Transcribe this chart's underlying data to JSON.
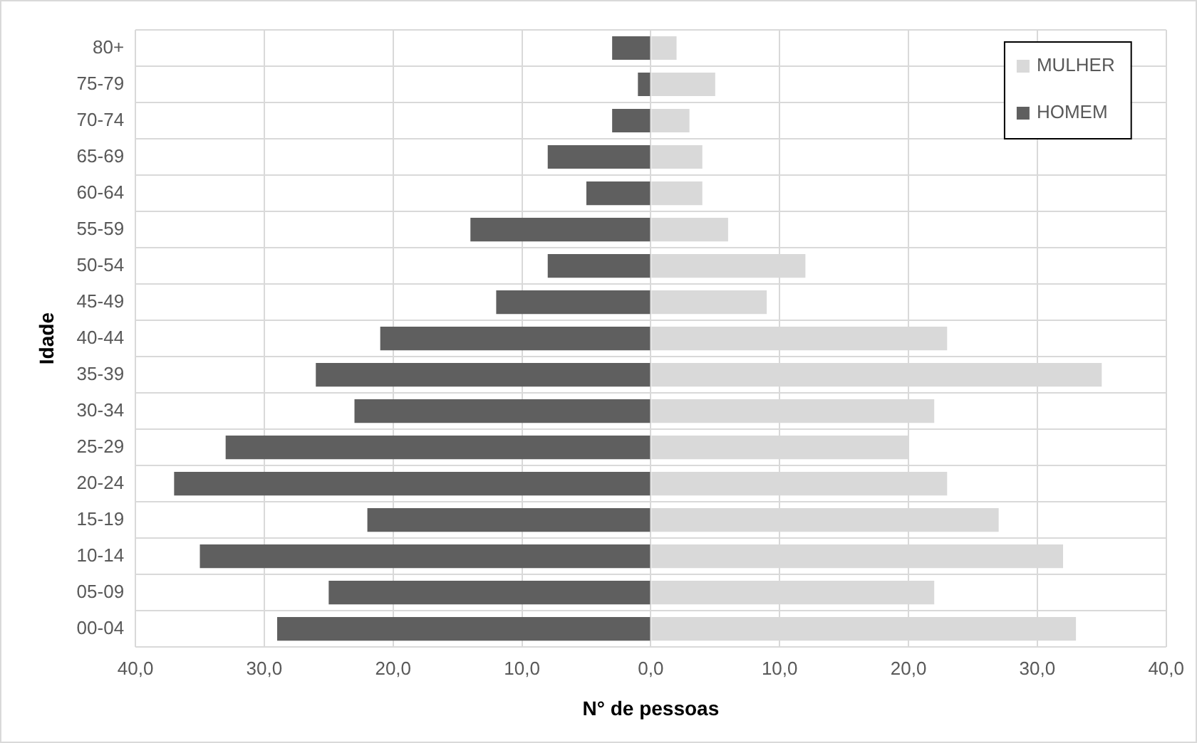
{
  "chart_data": {
    "type": "bar",
    "orientation": "horizontal",
    "stacked": true,
    "xlabel": "N° de pessoas",
    "ylabel": "Idade",
    "categories": [
      "80+",
      "75-79",
      "70-74",
      "65-69",
      "60-64",
      "55-59",
      "50-54",
      "45-49",
      "40-44",
      "35-39",
      "30-34",
      "25-29",
      "20-24",
      "15-19",
      "10-14",
      "05-09",
      "00-04"
    ],
    "series": [
      {
        "name": "MULHER",
        "color": "#d9d9d9",
        "values": [
          2,
          5,
          3,
          4,
          4,
          6,
          12,
          9,
          23,
          35,
          22,
          20,
          23,
          27,
          32,
          22,
          33
        ]
      },
      {
        "name": "HOMEM",
        "color": "#5f5f5f",
        "values": [
          -3,
          -1,
          -3,
          -8,
          -5,
          -14,
          -8,
          -12,
          -21,
          -26,
          -23,
          -33,
          -37,
          -22,
          -35,
          -25,
          -29
        ]
      }
    ],
    "xlim": [
      -40,
      40
    ],
    "xticks": [
      {
        "value": -40,
        "label": "40,0"
      },
      {
        "value": -30,
        "label": "30,0"
      },
      {
        "value": -20,
        "label": "20,0"
      },
      {
        "value": -10,
        "label": "10,0"
      },
      {
        "value": 0,
        "label": "0,0"
      },
      {
        "value": 10,
        "label": "10,0"
      },
      {
        "value": 20,
        "label": "20,0"
      },
      {
        "value": 30,
        "label": "30,0"
      },
      {
        "value": 40,
        "label": "40,0"
      }
    ],
    "grid": true,
    "legend": "top right"
  }
}
